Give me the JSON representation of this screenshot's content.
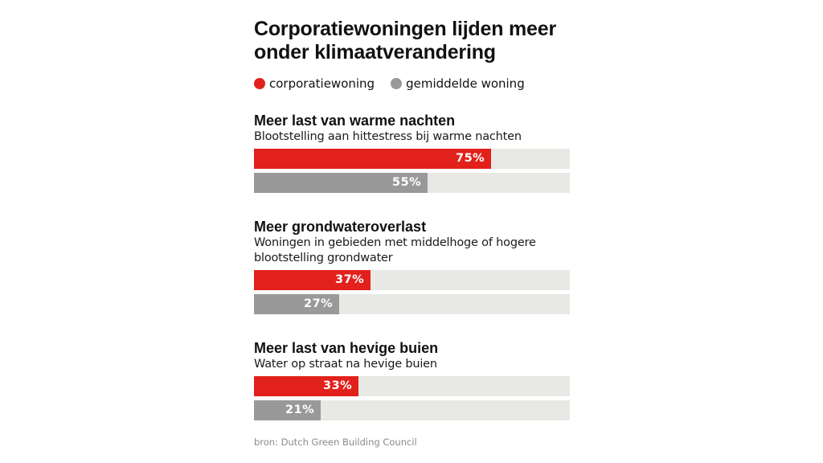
{
  "colors": {
    "red": "#e2211c",
    "grey": "#999999",
    "track": "#e8e8e4"
  },
  "chart_data": {
    "type": "bar",
    "orientation": "horizontal",
    "title": "Corporatiewoningen lijden meer onder klimaatverandering",
    "title_lines": [
      "Corporatiewoningen lijden meer",
      "onder klimaatverandering"
    ],
    "legend": [
      {
        "name": "corporatiewoning",
        "color": "#e2211c"
      },
      {
        "name": "gemiddelde woning",
        "color": "#999999"
      }
    ],
    "legend_position": "top-left",
    "xlim": [
      0,
      100
    ],
    "unit": "%",
    "groups": [
      {
        "title": "Meer last van warme nachten",
        "subtitle_lines": [
          "Blootstelling aan hittestress bij warme nachten"
        ],
        "series": [
          {
            "name": "corporatiewoning",
            "value": 75,
            "label": "75%"
          },
          {
            "name": "gemiddelde woning",
            "value": 55,
            "label": "55%"
          }
        ]
      },
      {
        "title": "Meer grondwateroverlast",
        "subtitle_lines": [
          "Woningen in gebieden met middelhoge of hogere",
          "blootstelling grondwater"
        ],
        "series": [
          {
            "name": "corporatiewoning",
            "value": 37,
            "label": "37%"
          },
          {
            "name": "gemiddelde woning",
            "value": 27,
            "label": "27%"
          }
        ]
      },
      {
        "title": "Meer last van hevige buien",
        "subtitle_lines": [
          "Water op straat na hevige buien"
        ],
        "series": [
          {
            "name": "corporatiewoning",
            "value": 33,
            "label": "33%"
          },
          {
            "name": "gemiddelde woning",
            "value": 21,
            "label": "21%"
          }
        ]
      }
    ],
    "source": "bron: Dutch Green Building Council"
  }
}
